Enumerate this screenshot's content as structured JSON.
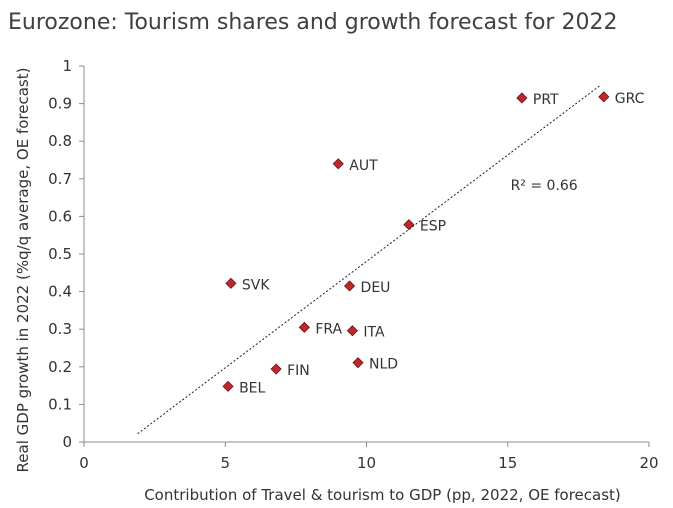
{
  "chart_data": {
    "type": "scatter",
    "title": "Eurozone: Tourism shares and growth forecast for 2022",
    "xlabel": "Contribution of Travel & tourism to GDP (pp, 2022, OE forecast)",
    "ylabel": "Real GDP growth in 2022 (%q/q average, OE forecast)",
    "xlim": [
      0,
      20
    ],
    "ylim": [
      0,
      1
    ],
    "xticks": [
      0,
      5,
      10,
      15,
      20
    ],
    "yticks": [
      0,
      0.1,
      0.2,
      0.3,
      0.4,
      0.5,
      0.6,
      0.7,
      0.8,
      0.9,
      1
    ],
    "xtick_labels": [
      "0",
      "5",
      "10",
      "15",
      "20"
    ],
    "ytick_labels": [
      "0",
      "0.1",
      "0.2",
      "0.3",
      "0.4",
      "0.5",
      "0.6",
      "0.7",
      "0.8",
      "0.9",
      "1"
    ],
    "grid": false,
    "marker_color": "#c0272d",
    "points": [
      {
        "label": "PRT",
        "x": 15.5,
        "y": 0.915
      },
      {
        "label": "GRC",
        "x": 18.4,
        "y": 0.918
      },
      {
        "label": "AUT",
        "x": 9.0,
        "y": 0.74
      },
      {
        "label": "ESP",
        "x": 11.5,
        "y": 0.578
      },
      {
        "label": "SVK",
        "x": 5.2,
        "y": 0.422
      },
      {
        "label": "DEU",
        "x": 9.4,
        "y": 0.415
      },
      {
        "label": "FRA",
        "x": 7.8,
        "y": 0.305
      },
      {
        "label": "ITA",
        "x": 9.5,
        "y": 0.296
      },
      {
        "label": "NLD",
        "x": 9.7,
        "y": 0.211
      },
      {
        "label": "FIN",
        "x": 6.8,
        "y": 0.194
      },
      {
        "label": "BEL",
        "x": 5.1,
        "y": 0.148
      }
    ],
    "trendline": {
      "x": [
        1.9,
        18.3
      ],
      "y": [
        0.022,
        0.95
      ],
      "style": "dotted"
    },
    "annotation": {
      "text": "R² = 0.66",
      "x": 15.1,
      "y": 0.67
    }
  }
}
